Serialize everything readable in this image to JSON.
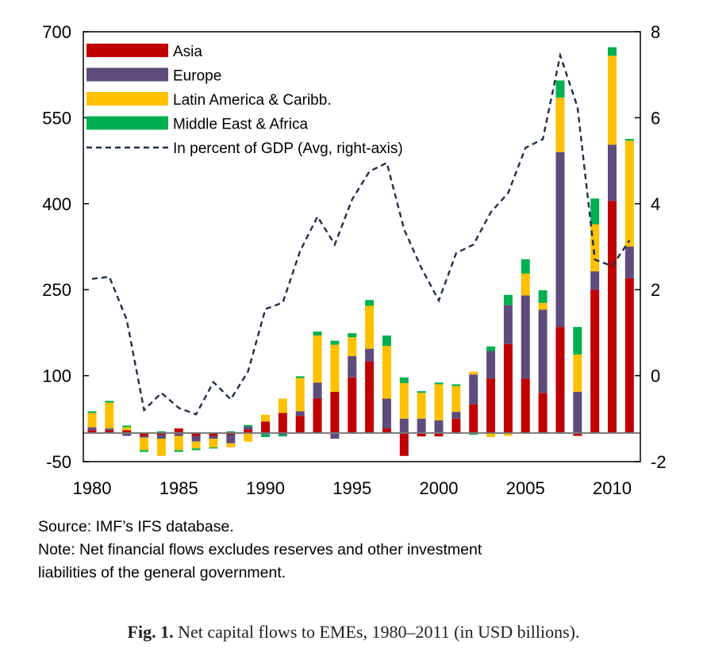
{
  "chart_data": {
    "type": "bar",
    "stacked": true,
    "x": [
      1980,
      1981,
      1982,
      1983,
      1984,
      1985,
      1986,
      1987,
      1988,
      1989,
      1990,
      1991,
      1992,
      1993,
      1994,
      1995,
      1996,
      1997,
      1998,
      1999,
      2000,
      2001,
      2002,
      2003,
      2004,
      2005,
      2006,
      2007,
      2008,
      2009,
      2010,
      2011
    ],
    "x_tick_labels": [
      "1980",
      "1985",
      "1990",
      "1995",
      "2000",
      "2005",
      "2010"
    ],
    "x_tick_years": [
      1980,
      1985,
      1990,
      1995,
      2000,
      2005,
      2010
    ],
    "y_left_ticks": [
      "700",
      "550",
      "400",
      "250",
      "100",
      "-50"
    ],
    "y_left_tick_values": [
      700,
      550,
      400,
      250,
      100,
      -50
    ],
    "y_right_ticks": [
      "8",
      "6",
      "4",
      "2",
      "0",
      "-2"
    ],
    "y_right_tick_values": [
      8,
      6,
      4,
      2,
      0,
      -2
    ],
    "ylim_left": [
      -50,
      700
    ],
    "ylim_right": [
      -2,
      8
    ],
    "series": [
      {
        "name": "Asia",
        "color": "#c00000",
        "values": [
          5,
          5,
          5,
          -5,
          -3,
          8,
          -5,
          -5,
          -3,
          6,
          20,
          35,
          30,
          60,
          72,
          97,
          125,
          8,
          -40,
          -6,
          -6,
          25,
          50,
          95,
          155,
          95,
          70,
          185,
          -5,
          250,
          405,
          270
        ]
      },
      {
        "name": "Europe",
        "color": "#5e4c7c",
        "values": [
          5,
          3,
          -5,
          -3,
          -7,
          -5,
          -10,
          -5,
          -15,
          5,
          -2,
          -3,
          8,
          28,
          -10,
          37,
          22,
          52,
          25,
          25,
          22,
          12,
          52,
          48,
          68,
          145,
          145,
          305,
          72,
          32,
          98,
          55
        ]
      },
      {
        "name": "Latin America & Caribb.",
        "color": "#ffc000",
        "values": [
          25,
          45,
          5,
          -22,
          -30,
          -25,
          -12,
          -15,
          -7,
          -15,
          12,
          25,
          58,
          82,
          82,
          33,
          75,
          92,
          62,
          45,
          63,
          45,
          5,
          -7,
          -5,
          38,
          12,
          95,
          65,
          82,
          155,
          185
        ]
      },
      {
        "name": "Middle East & Africa",
        "color": "#00b050",
        "values": [
          3,
          3,
          3,
          -3,
          3,
          -3,
          -3,
          -2,
          3,
          3,
          -5,
          -3,
          3,
          7,
          7,
          7,
          10,
          18,
          10,
          3,
          3,
          3,
          -3,
          8,
          18,
          25,
          22,
          30,
          48,
          45,
          15,
          3
        ]
      }
    ],
    "gdp_series": {
      "name": "In percent of GDP (Avg, right-axis)",
      "values": [
        2.25,
        2.3,
        1.3,
        -0.8,
        -0.4,
        -0.75,
        -0.9,
        -0.15,
        -0.55,
        0.1,
        1.55,
        1.7,
        2.9,
        3.7,
        3.05,
        4.1,
        4.75,
        4.95,
        3.4,
        2.5,
        1.75,
        2.85,
        3.05,
        3.8,
        4.25,
        5.3,
        5.5,
        7.45,
        6.25,
        2.7,
        2.55,
        3.15
      ]
    },
    "legend_position": "top-left"
  },
  "notes": {
    "source": "Source: IMF’s IFS database.",
    "note_line1": "Note: Net financial flows excludes reserves and other investment",
    "note_line2": "liabilities of the general government."
  },
  "caption": {
    "label": "Fig. 1.",
    "text": " Net capital flows to EMEs, 1980–2011 (in USD billions)."
  }
}
